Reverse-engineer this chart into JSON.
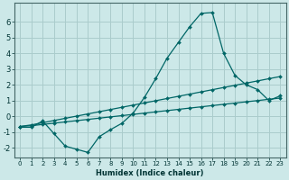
{
  "xlabel": "Humidex (Indice chaleur)",
  "background_color": "#cce8e8",
  "grid_color": "#aacccc",
  "line_color": "#006666",
  "xlim": [
    -0.5,
    23.5
  ],
  "ylim": [
    -2.6,
    7.2
  ],
  "xticks": [
    0,
    1,
    2,
    3,
    4,
    5,
    6,
    7,
    8,
    9,
    10,
    11,
    12,
    13,
    14,
    15,
    16,
    17,
    18,
    19,
    20,
    21,
    22,
    23
  ],
  "yticks": [
    -2,
    -1,
    0,
    1,
    2,
    3,
    4,
    5,
    6
  ],
  "curve1_x": [
    0,
    1,
    2,
    3,
    4,
    5,
    6,
    7,
    8,
    9,
    10,
    11,
    12,
    13,
    14,
    15,
    16,
    17,
    18,
    19,
    20,
    21,
    22,
    23
  ],
  "curve1_y": [
    -0.7,
    -0.7,
    -0.3,
    -1.1,
    -1.9,
    -2.1,
    -2.3,
    -1.3,
    -0.85,
    -0.45,
    0.2,
    1.2,
    2.4,
    3.7,
    4.7,
    5.7,
    6.55,
    6.6,
    4.0,
    2.6,
    2.0,
    1.7,
    1.0,
    1.3
  ],
  "curve2_x": [
    0,
    1,
    2,
    3,
    4,
    5,
    6,
    7,
    8,
    9,
    10,
    11,
    12,
    13,
    14,
    15,
    16,
    17,
    18,
    19,
    20,
    21,
    22,
    23
  ],
  "curve2_y": [
    -0.65,
    -0.6,
    -0.52,
    -0.44,
    -0.36,
    -0.28,
    -0.2,
    -0.12,
    -0.04,
    0.04,
    0.12,
    0.2,
    0.28,
    0.36,
    0.44,
    0.52,
    0.6,
    0.68,
    0.76,
    0.84,
    0.92,
    1.0,
    1.08,
    1.16
  ],
  "curve3_x": [
    0,
    1,
    2,
    3,
    4,
    5,
    6,
    7,
    8,
    9,
    10,
    11,
    12,
    13,
    14,
    15,
    16,
    17,
    18,
    19,
    20,
    21,
    22,
    23
  ],
  "curve3_y": [
    -0.65,
    -0.55,
    -0.41,
    -0.27,
    -0.13,
    0.01,
    0.15,
    0.29,
    0.43,
    0.57,
    0.71,
    0.85,
    0.99,
    1.13,
    1.27,
    1.41,
    1.55,
    1.69,
    1.83,
    1.97,
    2.11,
    2.25,
    2.39,
    2.53
  ],
  "xlabel_fontsize": 6.0,
  "tick_fontsize_x": 5.0,
  "tick_fontsize_y": 6.0
}
